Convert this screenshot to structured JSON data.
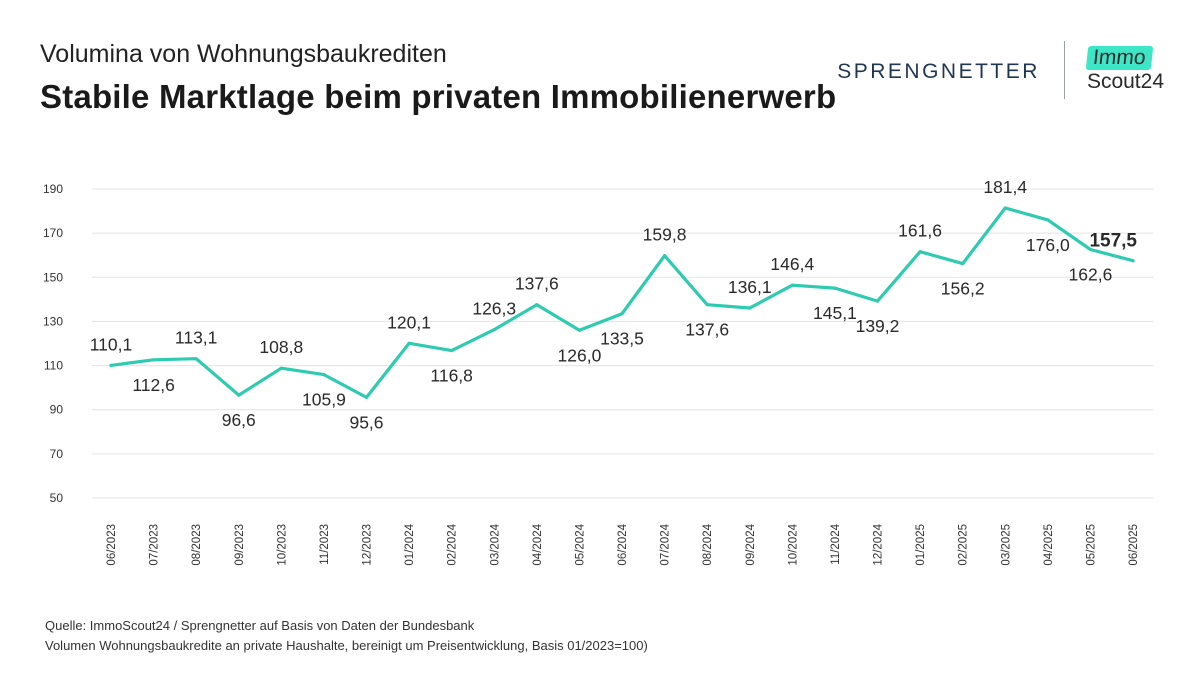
{
  "header": {
    "subtitle": "Volumina von Wohnungsbaukrediten",
    "title": "Stabile Marktlage beim privaten Immobilienerwerb"
  },
  "logos": {
    "sprengnetter": "SPRENGNETTER",
    "immo_top": "Immo",
    "immo_bottom": "Scout24"
  },
  "footer": {
    "source": "Quelle: ImmoScout24 / Sprengnetter auf Basis von Daten der Bundesbank",
    "note": "Volumen Wohnungsbaukredite an private Haushalte, bereinigt um Preisentwicklung, Basis 01/2023=100)"
  },
  "colors": {
    "line": "#2ecbb0",
    "grid": "#e3e3e3",
    "text": "#333333",
    "accent": "#3ce6c6"
  },
  "chart_data": {
    "type": "line",
    "title": "",
    "xlabel": "",
    "ylabel": "",
    "ylim": [
      50,
      190
    ],
    "yticks": [
      50,
      70,
      90,
      110,
      130,
      150,
      170,
      190
    ],
    "grid": true,
    "categories": [
      "06/2023",
      "07/2023",
      "08/2023",
      "09/2023",
      "10/2023",
      "11/2023",
      "12/2023",
      "01/2024",
      "02/2024",
      "03/2024",
      "04/2024",
      "05/2024",
      "06/2024",
      "07/2024",
      "08/2024",
      "09/2024",
      "10/2024",
      "11/2024",
      "12/2024",
      "01/2025",
      "02/2025",
      "03/2025",
      "04/2025",
      "05/2025",
      "06/2025"
    ],
    "values": [
      110.1,
      112.6,
      113.1,
      96.6,
      108.8,
      105.9,
      95.6,
      120.1,
      116.8,
      126.3,
      137.6,
      126.0,
      133.5,
      159.8,
      137.6,
      136.1,
      146.4,
      145.1,
      139.2,
      161.6,
      156.2,
      181.4,
      176.0,
      162.6,
      157.5
    ],
    "labels": [
      "110,1",
      "112,6",
      "113,1",
      "96,6",
      "108,8",
      "105,9",
      "95,6",
      "120,1",
      "116,8",
      "126,3",
      "137,6",
      "126,0",
      "133,5",
      "159,8",
      "137,6",
      "136,1",
      "146,4",
      "145,1",
      "139,2",
      "161,6",
      "156,2",
      "181,4",
      "176,0",
      "162,6",
      "157,5"
    ],
    "label_position": [
      "above",
      "below",
      "above",
      "below",
      "above",
      "below",
      "below",
      "above",
      "below",
      "above",
      "above",
      "below",
      "below",
      "above",
      "below",
      "above",
      "above",
      "below",
      "below",
      "above",
      "below",
      "above",
      "below",
      "below",
      "above"
    ],
    "highlight_last": true
  }
}
